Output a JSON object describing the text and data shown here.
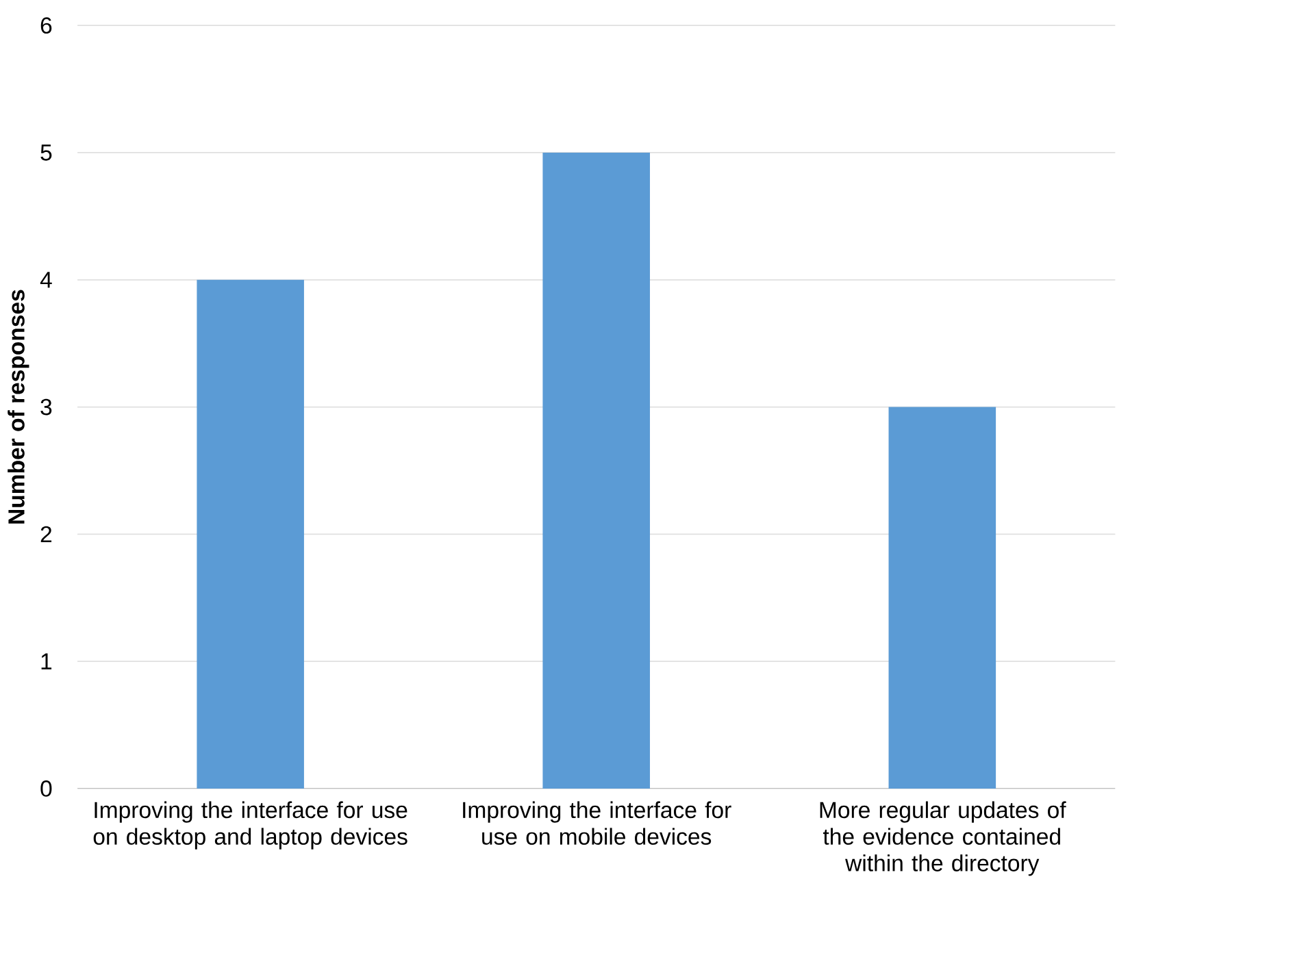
{
  "chart_data": {
    "type": "bar",
    "ylabel": "Number of responses",
    "categories": [
      "Improving the interface for use on desktop and laptop devices",
      "Improving the interface for use on mobile devices",
      "More regular updates of the evidence contained within the directory"
    ],
    "values": [
      4,
      5,
      3
    ],
    "color": "#5b9bd5",
    "ylim": [
      0,
      6
    ],
    "yticks": [
      0,
      1,
      2,
      3,
      4,
      5,
      6
    ],
    "grid": "y"
  }
}
